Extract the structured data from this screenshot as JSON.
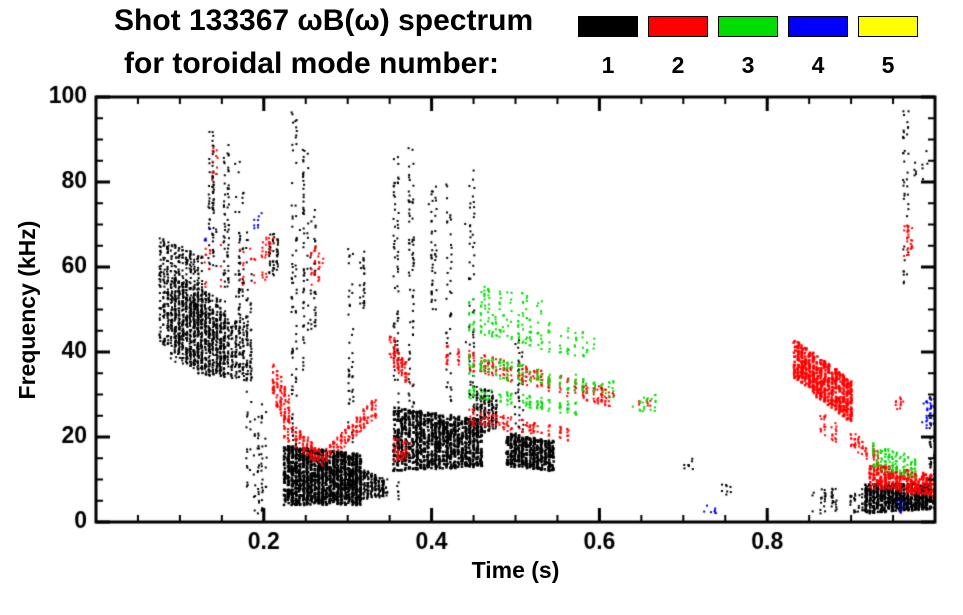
{
  "header": {
    "title": "Shot 133367 ωB(ω) spectrum",
    "mode_caption": "for toroidal mode number:"
  },
  "chart_data": {
    "type": "scatter",
    "title": "Shot 133367 ωB(ω) spectrum",
    "subtitle": "for toroidal mode number: 1 2 3 4 5",
    "xlabel": "Time (s)",
    "ylabel": "Frequency (kHz)",
    "xlim": [
      0,
      1.0
    ],
    "ylim": [
      0,
      100
    ],
    "x_major_ticks": [
      0.2,
      0.4,
      0.6,
      0.8
    ],
    "x_minor_step": 0.05,
    "y_major_ticks": [
      0,
      20,
      40,
      60,
      80,
      100
    ],
    "y_minor_step": 5,
    "grid": false,
    "legend": {
      "position": "top-right",
      "labels": [
        "1",
        "2",
        "3",
        "4",
        "5"
      ],
      "colors": [
        "#000000",
        "#ff0000",
        "#00dd00",
        "#0000ff",
        "#ffff00"
      ]
    },
    "clusters": [
      {
        "m": 1,
        "t": [
          0.075,
          0.125
        ],
        "fa": [
          42,
          67
        ],
        "fb": [
          38,
          63
        ],
        "n": 550,
        "s": 2
      },
      {
        "m": 1,
        "t": [
          0.09,
          0.155
        ],
        "fa": [
          38,
          58
        ],
        "fb": [
          34,
          52
        ],
        "n": 650,
        "s": 2
      },
      {
        "m": 1,
        "t": [
          0.115,
          0.185
        ],
        "fa": [
          35,
          52
        ],
        "fb": [
          33,
          46
        ],
        "n": 500,
        "s": 2
      },
      {
        "m": 1,
        "t": [
          0.135,
          0.142
        ],
        "fa": [
          60,
          92
        ],
        "n": 70,
        "s": 2
      },
      {
        "m": 1,
        "t": [
          0.152,
          0.158
        ],
        "fa": [
          55,
          90
        ],
        "n": 60,
        "s": 2
      },
      {
        "m": 1,
        "t": [
          0.168,
          0.175
        ],
        "fa": [
          45,
          86
        ],
        "n": 55,
        "s": 2
      },
      {
        "m": 1,
        "t": [
          0.178,
          0.184
        ],
        "fa": [
          8,
          70
        ],
        "n": 45,
        "s": 2
      },
      {
        "m": 1,
        "t": [
          0.19,
          0.202
        ],
        "fa": [
          2,
          28
        ],
        "n": 55,
        "s": 2
      },
      {
        "m": 1,
        "t": [
          0.205,
          0.218
        ],
        "fa": [
          58,
          68
        ],
        "n": 50,
        "s": 2
      },
      {
        "m": 1,
        "t": [
          0.233,
          0.239
        ],
        "fa": [
          12,
          97
        ],
        "n": 85,
        "s": 2
      },
      {
        "m": 1,
        "t": [
          0.245,
          0.251
        ],
        "fa": [
          35,
          88
        ],
        "n": 60,
        "s": 2
      },
      {
        "m": 1,
        "t": [
          0.258,
          0.263
        ],
        "fa": [
          45,
          75
        ],
        "n": 35,
        "s": 2
      },
      {
        "m": 1,
        "t": [
          0.3,
          0.306
        ],
        "fa": [
          15,
          65
        ],
        "n": 45,
        "s": 2
      },
      {
        "m": 1,
        "t": [
          0.315,
          0.321
        ],
        "fa": [
          50,
          66
        ],
        "n": 25,
        "s": 2
      },
      {
        "m": 1,
        "t": [
          0.225,
          0.315
        ],
        "fa": [
          4,
          18
        ],
        "fb": [
          4,
          16
        ],
        "n": 1400,
        "s": 2.5
      },
      {
        "m": 1,
        "t": [
          0.31,
          0.345
        ],
        "fa": [
          5,
          13
        ],
        "fb": [
          6,
          10
        ],
        "n": 250,
        "s": 2
      },
      {
        "m": 1,
        "t": [
          0.355,
          0.362
        ],
        "fa": [
          4,
          86
        ],
        "n": 90,
        "s": 2
      },
      {
        "m": 1,
        "t": [
          0.372,
          0.379
        ],
        "fa": [
          25,
          88
        ],
        "n": 70,
        "s": 2
      },
      {
        "m": 1,
        "t": [
          0.398,
          0.405
        ],
        "fa": [
          50,
          80
        ],
        "n": 45,
        "s": 2
      },
      {
        "m": 1,
        "t": [
          0.418,
          0.425
        ],
        "fa": [
          25,
          80
        ],
        "n": 45,
        "s": 2
      },
      {
        "m": 1,
        "t": [
          0.443,
          0.452
        ],
        "fa": [
          25,
          85
        ],
        "n": 55,
        "s": 2
      },
      {
        "m": 1,
        "t": [
          0.355,
          0.46
        ],
        "fa": [
          12,
          27
        ],
        "fb": [
          13,
          24
        ],
        "n": 1100,
        "s": 2.5
      },
      {
        "m": 1,
        "t": [
          0.45,
          0.478
        ],
        "fa": [
          20,
          33
        ],
        "fb": [
          22,
          30
        ],
        "n": 200,
        "s": 2
      },
      {
        "m": 1,
        "t": [
          0.5,
          0.508
        ],
        "fa": [
          18,
          50
        ],
        "n": 35,
        "s": 2
      },
      {
        "m": 1,
        "t": [
          0.488,
          0.545
        ],
        "fa": [
          13,
          21
        ],
        "fb": [
          12,
          19
        ],
        "n": 450,
        "s": 2.5
      },
      {
        "m": 1,
        "t": [
          0.55,
          0.575
        ],
        "fa": [
          13,
          17
        ],
        "fb": [
          14,
          16
        ],
        "n": 50,
        "s": 2,
        "g": 0.5
      },
      {
        "m": 1,
        "t": [
          0.7,
          0.716
        ],
        "fa": [
          12,
          15
        ],
        "n": 8,
        "s": 2
      },
      {
        "m": 1,
        "t": [
          0.745,
          0.758
        ],
        "fa": [
          6,
          9
        ],
        "n": 8,
        "s": 2
      },
      {
        "m": 1,
        "t": [
          0.855,
          0.915
        ],
        "fa": [
          2,
          8
        ],
        "n": 90,
        "s": 2,
        "g": 0.4
      },
      {
        "m": 1,
        "t": [
          0.915,
          0.998
        ],
        "fa": [
          2,
          9
        ],
        "fb": [
          3,
          9
        ],
        "n": 700,
        "s": 2.5
      },
      {
        "m": 1,
        "t": [
          0.962,
          0.968
        ],
        "fa": [
          55,
          97
        ],
        "n": 40,
        "s": 2
      },
      {
        "m": 1,
        "t": [
          0.975,
          0.99
        ],
        "fa": [
          80,
          88
        ],
        "n": 10,
        "s": 2
      },
      {
        "m": 1,
        "t": [
          0.992,
          1.0
        ],
        "fa": [
          10,
          30
        ],
        "n": 40,
        "s": 2
      },
      {
        "m": 2,
        "t": [
          0.125,
          0.205
        ],
        "fa": [
          55,
          65
        ],
        "fb": [
          56,
          66
        ],
        "n": 90,
        "s": 2,
        "g": 0.45
      },
      {
        "m": 2,
        "t": [
          0.138,
          0.148
        ],
        "fa": [
          80,
          88
        ],
        "n": 12,
        "s": 2
      },
      {
        "m": 2,
        "t": [
          0.2,
          0.21
        ],
        "fa": [
          63,
          67
        ],
        "n": 15,
        "s": 2
      },
      {
        "m": 2,
        "t": [
          0.255,
          0.268
        ],
        "fa": [
          55,
          65
        ],
        "n": 30,
        "s": 2
      },
      {
        "m": 2,
        "t": [
          0.21,
          0.232
        ],
        "fa": [
          30,
          38
        ],
        "fb": [
          20,
          28
        ],
        "n": 110,
        "s": 2
      },
      {
        "m": 2,
        "t": [
          0.225,
          0.27
        ],
        "fa": [
          19,
          25
        ],
        "fb": [
          13,
          16
        ],
        "n": 130,
        "s": 2
      },
      {
        "m": 2,
        "t": [
          0.27,
          0.335
        ],
        "fa": [
          13,
          16
        ],
        "fb": [
          25,
          30
        ],
        "n": 150,
        "s": 2
      },
      {
        "m": 2,
        "t": [
          0.352,
          0.372
        ],
        "fa": [
          38,
          44
        ],
        "fb": [
          32,
          36
        ],
        "n": 90,
        "s": 2
      },
      {
        "m": 2,
        "t": [
          0.355,
          0.372
        ],
        "fa": [
          14,
          20
        ],
        "fb": [
          15,
          19
        ],
        "n": 50,
        "s": 2
      },
      {
        "m": 2,
        "t": [
          0.415,
          0.615
        ],
        "fa": [
          37,
          42
        ],
        "fb": [
          27,
          31
        ],
        "n": 380,
        "s": 2,
        "g": 0.3
      },
      {
        "m": 2,
        "t": [
          0.44,
          0.565
        ],
        "fa": [
          23,
          27
        ],
        "fb": [
          19,
          22
        ],
        "n": 170,
        "s": 2,
        "g": 0.3
      },
      {
        "m": 2,
        "t": [
          0.645,
          0.662
        ],
        "fa": [
          27,
          29
        ],
        "n": 10,
        "s": 2
      },
      {
        "m": 2,
        "t": [
          0.832,
          0.902
        ],
        "fa": [
          34,
          43
        ],
        "fb": [
          23,
          33
        ],
        "n": 600,
        "s": 2.5
      },
      {
        "m": 2,
        "t": [
          0.862,
          0.935
        ],
        "fa": [
          21,
          26
        ],
        "fb": [
          13,
          17
        ],
        "n": 140,
        "s": 2,
        "g": 0.35
      },
      {
        "m": 2,
        "t": [
          0.922,
          1.0
        ],
        "fa": [
          8,
          14
        ],
        "fb": [
          6,
          11
        ],
        "n": 330,
        "s": 2.5
      },
      {
        "m": 2,
        "t": [
          0.962,
          0.972
        ],
        "fa": [
          62,
          70
        ],
        "n": 30,
        "s": 2
      },
      {
        "m": 2,
        "t": [
          0.952,
          0.962
        ],
        "fa": [
          26,
          30
        ],
        "n": 12,
        "s": 2
      },
      {
        "m": 3,
        "t": [
          0.425,
          0.6
        ],
        "fa": [
          46,
          53
        ],
        "fb": [
          37,
          44
        ],
        "n": 260,
        "s": 2,
        "g": 0.35
      },
      {
        "m": 3,
        "t": [
          0.43,
          0.625
        ],
        "fa": [
          35,
          40
        ],
        "fb": [
          29,
          33
        ],
        "n": 240,
        "s": 2,
        "g": 0.35
      },
      {
        "m": 3,
        "t": [
          0.445,
          0.575
        ],
        "fa": [
          29,
          32
        ],
        "fb": [
          25,
          28
        ],
        "n": 150,
        "s": 2,
        "g": 0.4
      },
      {
        "m": 3,
        "t": [
          0.45,
          0.535
        ],
        "fa": [
          51,
          56
        ],
        "fb": [
          48,
          53
        ],
        "n": 70,
        "s": 2,
        "g": 0.45
      },
      {
        "m": 3,
        "t": [
          0.64,
          0.672
        ],
        "fa": [
          26,
          30
        ],
        "n": 25,
        "s": 2,
        "g": 0.3
      },
      {
        "m": 3,
        "t": [
          0.922,
          0.978
        ],
        "fa": [
          13,
          19
        ],
        "fb": [
          10,
          15
        ],
        "n": 130,
        "s": 2,
        "g": 0.25
      },
      {
        "m": 4,
        "t": [
          0.13,
          0.137
        ],
        "fa": [
          66,
          69
        ],
        "n": 5,
        "s": 2
      },
      {
        "m": 4,
        "t": [
          0.188,
          0.198
        ],
        "fa": [
          69,
          73
        ],
        "n": 8,
        "s": 2
      },
      {
        "m": 4,
        "t": [
          0.725,
          0.74
        ],
        "fa": [
          2,
          4
        ],
        "n": 8,
        "s": 2
      },
      {
        "m": 4,
        "t": [
          0.953,
          0.962
        ],
        "fa": [
          2,
          5
        ],
        "n": 8,
        "s": 2
      },
      {
        "m": 4,
        "t": [
          0.985,
          1.0
        ],
        "fa": [
          20,
          29
        ],
        "n": 30,
        "s": 2
      }
    ]
  }
}
